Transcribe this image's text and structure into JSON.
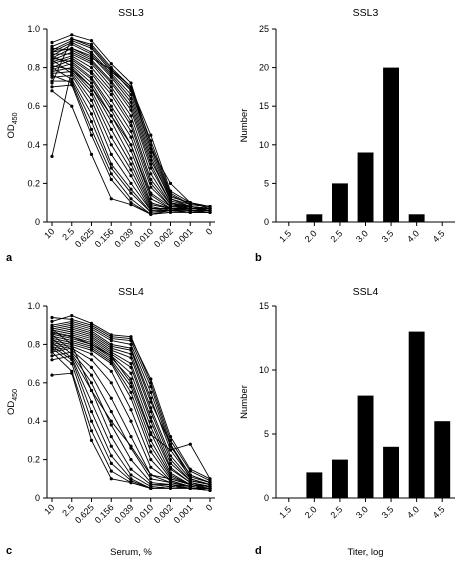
{
  "chart_data": [
    {
      "panel": "a",
      "type": "line",
      "title": "SSL3",
      "ylabel": "OD450",
      "ylabel_main": "OD",
      "ylabel_sub": "450",
      "xlabel": "",
      "x": [
        "10",
        "2.5",
        "0.625",
        "0.156",
        "0.039",
        "0.010",
        "0.002",
        "0.001",
        "0"
      ],
      "ylim": [
        0,
        1.0
      ],
      "yticks": [
        "0",
        "0.2",
        "0.4",
        "0.6",
        "0.8",
        "1.0"
      ],
      "series": [
        {
          "values": [
            0.93,
            0.97,
            0.94,
            0.82,
            0.72,
            0.4,
            0.14,
            0.09,
            0.08
          ]
        },
        {
          "values": [
            0.91,
            0.95,
            0.92,
            0.8,
            0.7,
            0.38,
            0.13,
            0.1,
            0.07
          ]
        },
        {
          "values": [
            0.89,
            0.94,
            0.9,
            0.78,
            0.69,
            0.42,
            0.15,
            0.09,
            0.08
          ]
        },
        {
          "values": [
            0.88,
            0.93,
            0.88,
            0.77,
            0.66,
            0.36,
            0.12,
            0.08,
            0.07
          ]
        },
        {
          "values": [
            0.86,
            0.92,
            0.87,
            0.76,
            0.64,
            0.34,
            0.11,
            0.08,
            0.07
          ]
        },
        {
          "values": [
            0.85,
            0.9,
            0.86,
            0.75,
            0.62,
            0.32,
            0.12,
            0.09,
            0.08
          ]
        },
        {
          "values": [
            0.9,
            0.89,
            0.84,
            0.73,
            0.6,
            0.3,
            0.1,
            0.08,
            0.07
          ]
        },
        {
          "values": [
            0.84,
            0.88,
            0.83,
            0.72,
            0.58,
            0.28,
            0.1,
            0.07,
            0.07
          ]
        },
        {
          "values": [
            0.87,
            0.87,
            0.82,
            0.7,
            0.55,
            0.25,
            0.09,
            0.08,
            0.06
          ]
        },
        {
          "values": [
            0.83,
            0.86,
            0.8,
            0.68,
            0.52,
            0.22,
            0.09,
            0.07,
            0.07
          ]
        },
        {
          "values": [
            0.82,
            0.85,
            0.78,
            0.66,
            0.5,
            0.2,
            0.08,
            0.07,
            0.06
          ]
        },
        {
          "values": [
            0.8,
            0.84,
            0.77,
            0.63,
            0.47,
            0.18,
            0.08,
            0.08,
            0.07
          ]
        },
        {
          "values": [
            0.85,
            0.83,
            0.75,
            0.6,
            0.44,
            0.15,
            0.08,
            0.07,
            0.06
          ]
        },
        {
          "values": [
            0.79,
            0.82,
            0.74,
            0.58,
            0.4,
            0.12,
            0.07,
            0.07,
            0.06
          ]
        },
        {
          "values": [
            0.86,
            0.81,
            0.72,
            0.55,
            0.37,
            0.1,
            0.07,
            0.06,
            0.06
          ]
        },
        {
          "values": [
            0.78,
            0.8,
            0.7,
            0.52,
            0.33,
            0.09,
            0.07,
            0.06,
            0.06
          ]
        },
        {
          "values": [
            0.81,
            0.79,
            0.68,
            0.48,
            0.3,
            0.08,
            0.06,
            0.07,
            0.06
          ]
        },
        {
          "values": [
            0.77,
            0.78,
            0.66,
            0.44,
            0.27,
            0.07,
            0.07,
            0.06,
            0.05
          ]
        },
        {
          "values": [
            0.84,
            0.77,
            0.63,
            0.4,
            0.24,
            0.06,
            0.06,
            0.06,
            0.05
          ]
        },
        {
          "values": [
            0.75,
            0.76,
            0.6,
            0.35,
            0.2,
            0.06,
            0.07,
            0.06,
            0.06
          ]
        },
        {
          "values": [
            0.8,
            0.74,
            0.56,
            0.3,
            0.17,
            0.05,
            0.06,
            0.05,
            0.05
          ]
        },
        {
          "values": [
            0.73,
            0.73,
            0.52,
            0.28,
            0.15,
            0.05,
            0.06,
            0.05,
            0.05
          ]
        },
        {
          "values": [
            0.76,
            0.72,
            0.48,
            0.25,
            0.12,
            0.04,
            0.06,
            0.05,
            0.05
          ]
        },
        {
          "values": [
            0.7,
            0.71,
            0.45,
            0.22,
            0.1,
            0.04,
            0.05,
            0.05,
            0.05
          ]
        },
        {
          "values": [
            0.68,
            0.6,
            0.35,
            0.12,
            0.09,
            0.04,
            0.05,
            0.05,
            0.05
          ]
        },
        {
          "values": [
            0.34,
            0.79,
            0.7,
            0.55,
            0.4,
            0.14,
            0.07,
            0.06,
            0.06
          ]
        },
        {
          "values": [
            0.72,
            0.95,
            0.91,
            0.79,
            0.7,
            0.45,
            0.16,
            0.1,
            0.08
          ]
        },
        {
          "values": [
            0.88,
            0.9,
            0.85,
            0.79,
            0.68,
            0.38,
            0.2,
            0.1,
            0.08
          ]
        }
      ]
    },
    {
      "panel": "b",
      "type": "bar",
      "title": "SSL3",
      "ylabel": "Number",
      "xlabel": "",
      "categories": [
        "1.5",
        "2.0",
        "2.5",
        "3.0",
        "3.5",
        "4.0",
        "4.5"
      ],
      "values": [
        0,
        1,
        5,
        9,
        20,
        1,
        0
      ],
      "ylim": [
        0,
        25
      ],
      "yticks": [
        "0",
        "5",
        "10",
        "15",
        "20",
        "25"
      ]
    },
    {
      "panel": "c",
      "type": "line",
      "title": "SSL4",
      "ylabel": "OD450",
      "ylabel_main": "OD",
      "ylabel_sub": "450",
      "xlabel": "Serum, %",
      "x": [
        "10",
        "2.5",
        "0.625",
        "0.156",
        "0.039",
        "0.010",
        "0.002",
        "0.001",
        "0"
      ],
      "ylim": [
        0,
        1.0
      ],
      "yticks": [
        "0",
        "0.2",
        "0.4",
        "0.6",
        "0.8",
        "1.0"
      ],
      "series": [
        {
          "values": [
            0.94,
            0.93,
            0.9,
            0.84,
            0.83,
            0.62,
            0.32,
            0.15,
            0.1
          ]
        },
        {
          "values": [
            0.92,
            0.95,
            0.91,
            0.85,
            0.84,
            0.6,
            0.3,
            0.14,
            0.09
          ]
        },
        {
          "values": [
            0.9,
            0.92,
            0.89,
            0.83,
            0.82,
            0.58,
            0.28,
            0.12,
            0.08
          ]
        },
        {
          "values": [
            0.89,
            0.91,
            0.88,
            0.82,
            0.8,
            0.55,
            0.27,
            0.12,
            0.08
          ]
        },
        {
          "values": [
            0.88,
            0.9,
            0.87,
            0.8,
            0.78,
            0.52,
            0.25,
            0.11,
            0.08
          ]
        },
        {
          "values": [
            0.87,
            0.89,
            0.86,
            0.79,
            0.77,
            0.5,
            0.28,
            0.1,
            0.07
          ]
        },
        {
          "values": [
            0.86,
            0.88,
            0.85,
            0.78,
            0.75,
            0.47,
            0.22,
            0.1,
            0.07
          ]
        },
        {
          "values": [
            0.85,
            0.87,
            0.84,
            0.77,
            0.73,
            0.45,
            0.2,
            0.09,
            0.07
          ]
        },
        {
          "values": [
            0.84,
            0.86,
            0.83,
            0.76,
            0.7,
            0.42,
            0.18,
            0.09,
            0.07
          ]
        },
        {
          "values": [
            0.83,
            0.85,
            0.82,
            0.75,
            0.68,
            0.4,
            0.16,
            0.08,
            0.06
          ]
        },
        {
          "values": [
            0.82,
            0.84,
            0.81,
            0.74,
            0.65,
            0.37,
            0.15,
            0.08,
            0.06
          ]
        },
        {
          "values": [
            0.81,
            0.83,
            0.8,
            0.73,
            0.62,
            0.34,
            0.13,
            0.07,
            0.06
          ]
        },
        {
          "values": [
            0.8,
            0.82,
            0.79,
            0.72,
            0.58,
            0.3,
            0.12,
            0.07,
            0.06
          ]
        },
        {
          "values": [
            0.79,
            0.81,
            0.78,
            0.71,
            0.55,
            0.27,
            0.11,
            0.07,
            0.06
          ]
        },
        {
          "values": [
            0.78,
            0.8,
            0.77,
            0.7,
            0.52,
            0.24,
            0.1,
            0.07,
            0.05
          ]
        },
        {
          "values": [
            0.77,
            0.79,
            0.75,
            0.66,
            0.46,
            0.2,
            0.09,
            0.06,
            0.05
          ]
        },
        {
          "values": [
            0.76,
            0.78,
            0.72,
            0.6,
            0.4,
            0.16,
            0.09,
            0.06,
            0.05
          ]
        },
        {
          "values": [
            0.85,
            0.77,
            0.68,
            0.52,
            0.32,
            0.12,
            0.08,
            0.06,
            0.05
          ]
        },
        {
          "values": [
            0.74,
            0.76,
            0.64,
            0.45,
            0.26,
            0.1,
            0.08,
            0.06,
            0.05
          ]
        },
        {
          "values": [
            0.83,
            0.75,
            0.6,
            0.38,
            0.2,
            0.08,
            0.07,
            0.06,
            0.05
          ]
        },
        {
          "values": [
            0.72,
            0.74,
            0.56,
            0.32,
            0.15,
            0.07,
            0.07,
            0.05,
            0.05
          ]
        },
        {
          "values": [
            0.81,
            0.73,
            0.5,
            0.27,
            0.12,
            0.06,
            0.07,
            0.05,
            0.05
          ]
        },
        {
          "values": [
            0.79,
            0.72,
            0.45,
            0.22,
            0.1,
            0.05,
            0.06,
            0.05,
            0.04
          ]
        },
        {
          "values": [
            0.78,
            0.7,
            0.4,
            0.18,
            0.09,
            0.05,
            0.06,
            0.05,
            0.04
          ]
        },
        {
          "values": [
            0.76,
            0.66,
            0.35,
            0.14,
            0.08,
            0.05,
            0.06,
            0.05,
            0.04
          ]
        },
        {
          "values": [
            0.64,
            0.65,
            0.3,
            0.1,
            0.08,
            0.05,
            0.05,
            0.05,
            0.04
          ]
        },
        {
          "values": [
            0.88,
            0.8,
            0.56,
            0.4,
            0.27,
            0.12,
            0.1,
            0.07,
            0.06
          ]
        },
        {
          "values": [
            0.86,
            0.84,
            0.8,
            0.74,
            0.6,
            0.33,
            0.25,
            0.28,
            0.1
          ]
        }
      ]
    },
    {
      "panel": "d",
      "type": "bar",
      "title": "SSL4",
      "ylabel": "Number",
      "xlabel": "Titer, log",
      "categories": [
        "1.5",
        "2.0",
        "2.5",
        "3.0",
        "3.5",
        "4.0",
        "4.5"
      ],
      "values": [
        0,
        2,
        3,
        8,
        4,
        13,
        6
      ],
      "ylim": [
        0,
        15
      ],
      "yticks": [
        "0",
        "5",
        "10",
        "15"
      ]
    }
  ]
}
